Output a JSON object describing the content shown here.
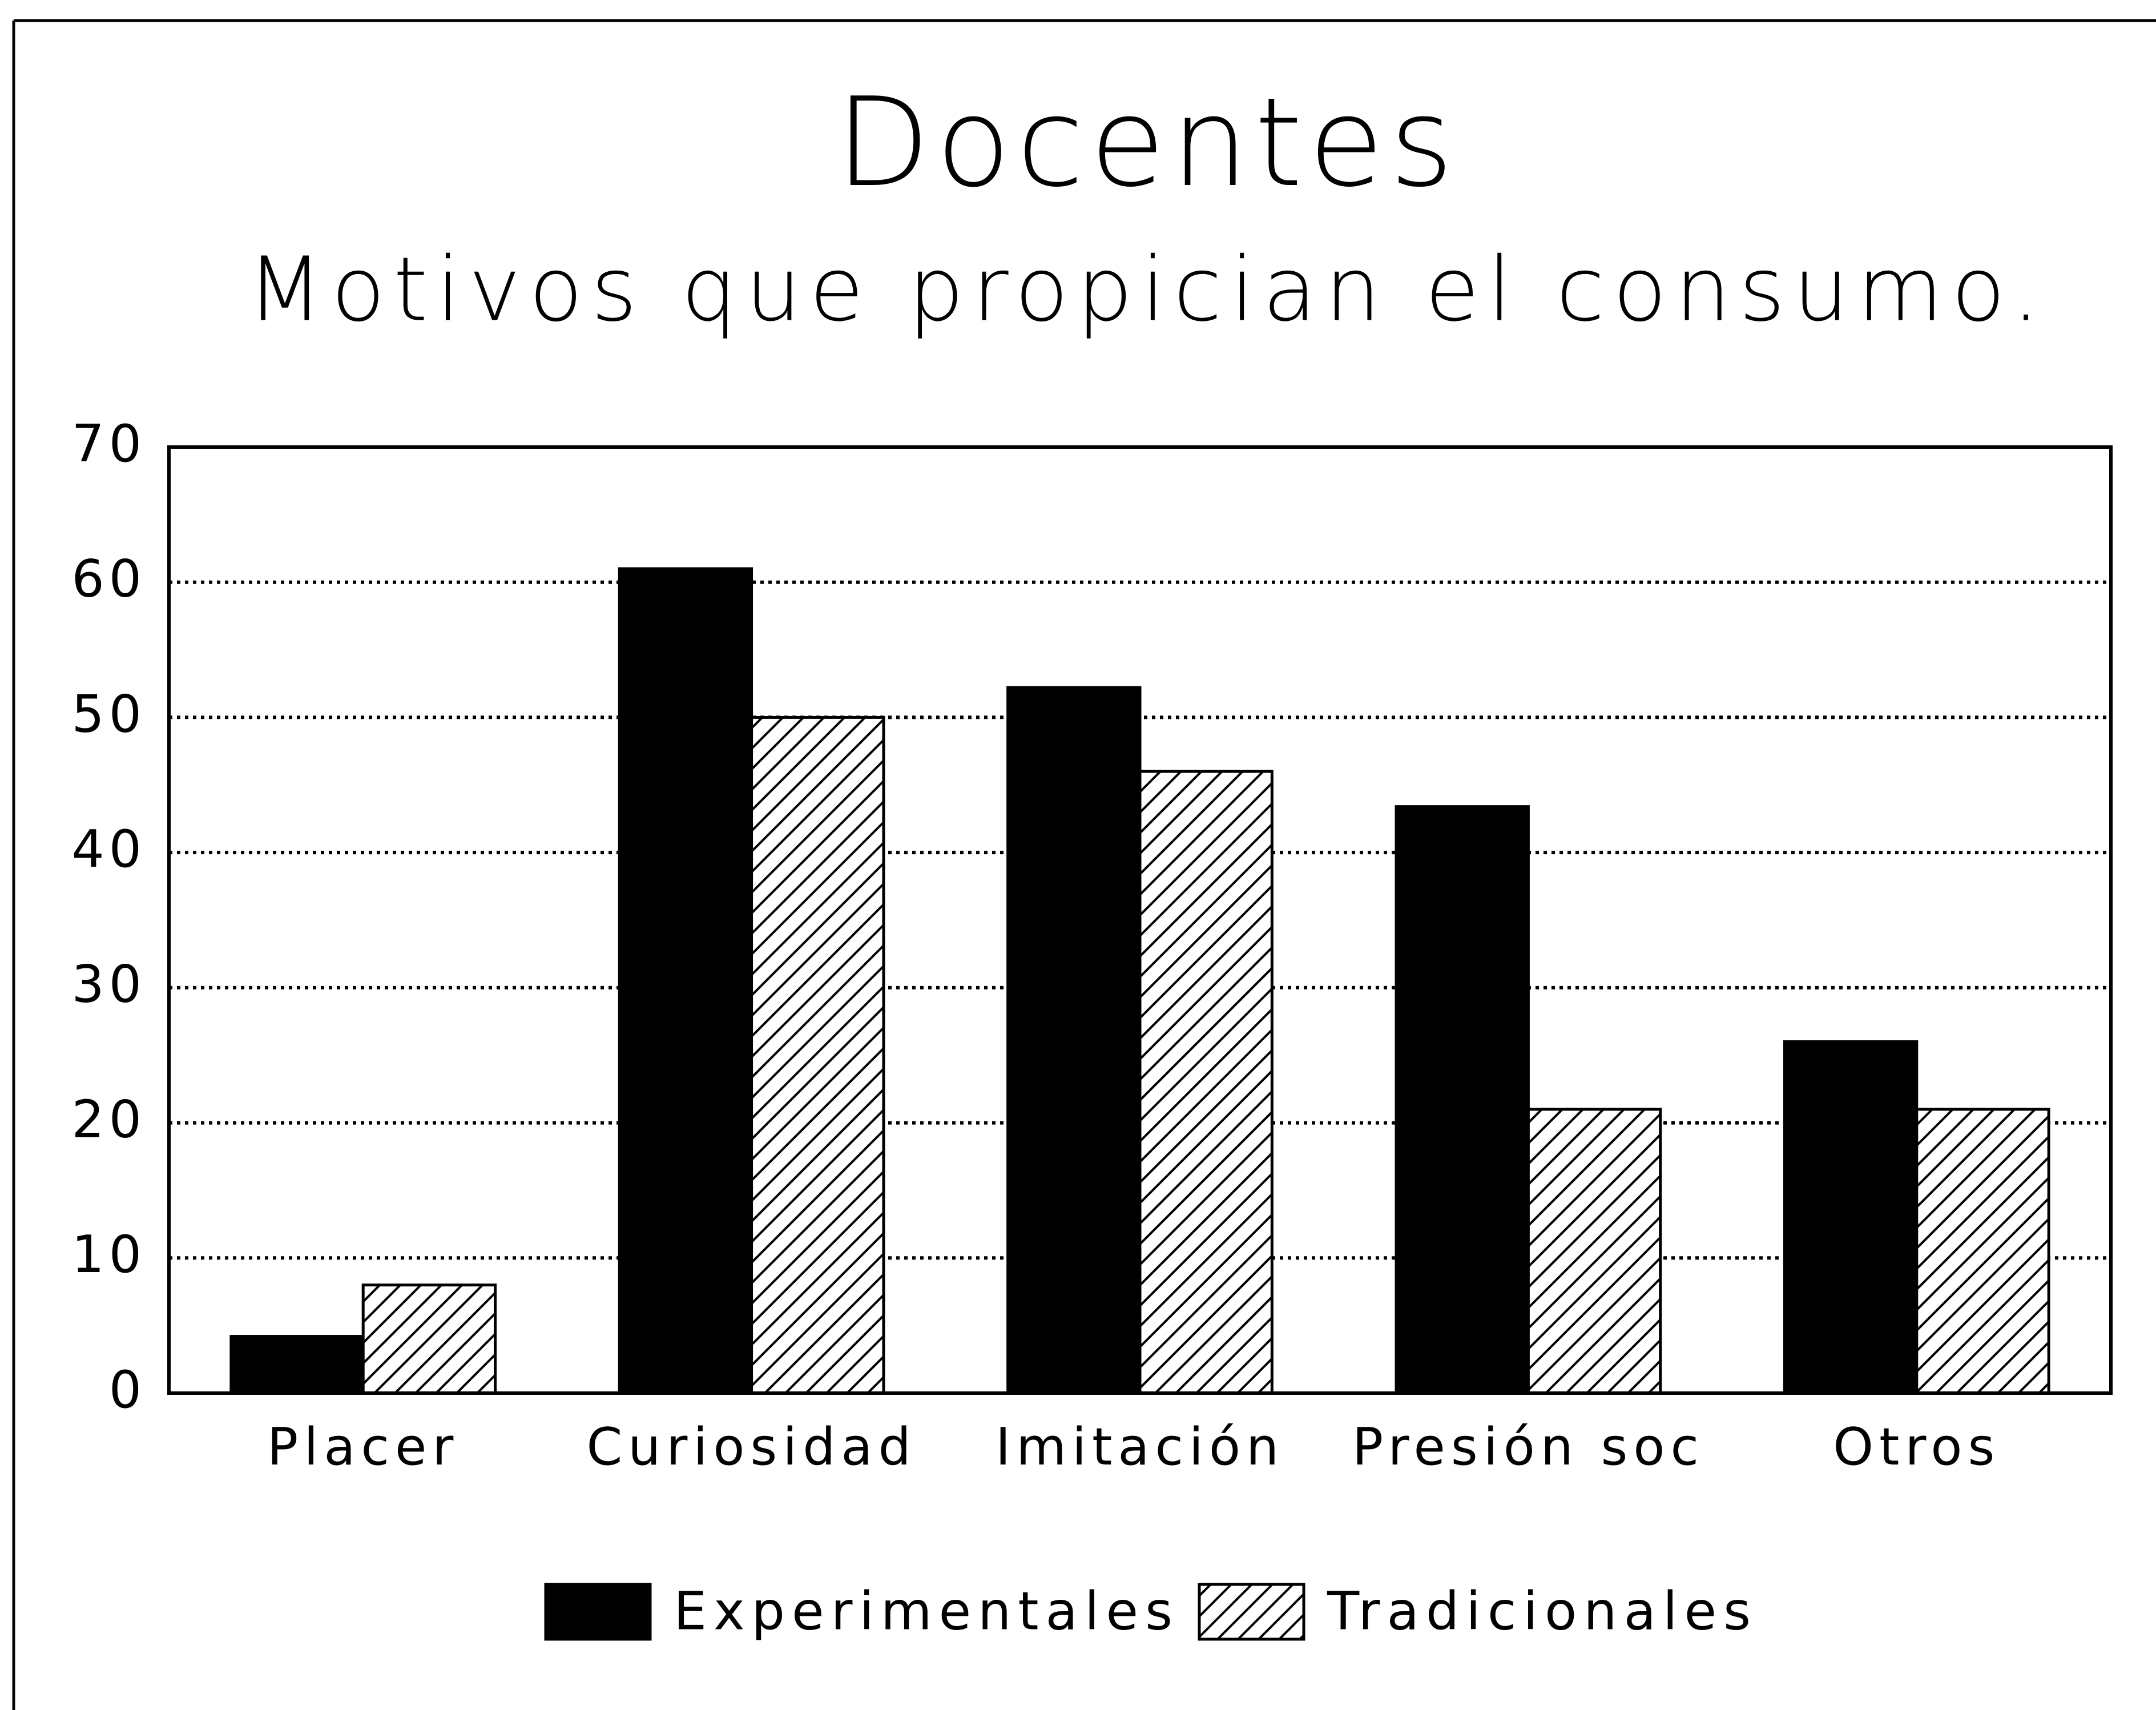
{
  "chart_data": {
    "type": "bar",
    "title": "Docentes",
    "subtitle": "Motivos que propician el consumo.",
    "categories": [
      "Placer",
      "Curiosidad",
      "Imitación",
      "Presión soc",
      "Otros"
    ],
    "series": [
      {
        "name": "Experimentales",
        "color": "#000000",
        "pattern": "solid",
        "values": [
          4.2,
          61,
          52.2,
          43.4,
          26
        ]
      },
      {
        "name": "Tradicionales",
        "color": "#000000",
        "pattern": "diagonal",
        "values": [
          8,
          50,
          46,
          21,
          21
        ]
      }
    ],
    "ylim": [
      0,
      70
    ],
    "yticks": [
      0,
      10,
      20,
      30,
      40,
      50,
      60,
      70
    ],
    "grid": true,
    "legend": "bottom"
  }
}
